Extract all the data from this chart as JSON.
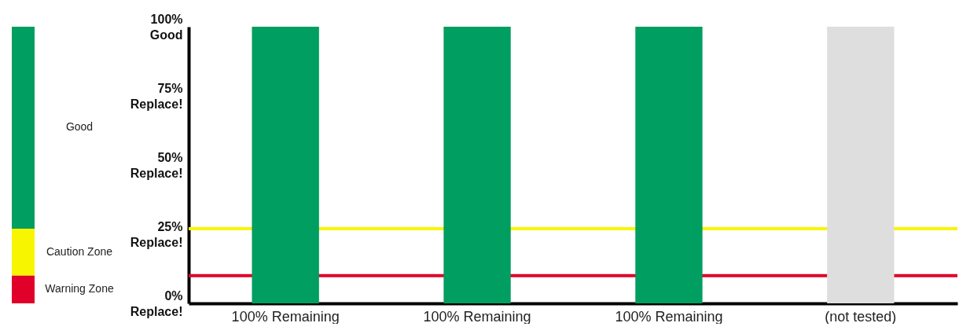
{
  "chart_data": {
    "type": "bar",
    "categories": [
      "100% Remaining",
      "100% Remaining",
      "100% Remaining",
      "(not tested)"
    ],
    "values": [
      100,
      100,
      100,
      100
    ],
    "colors": [
      "#009e60",
      "#009e60",
      "#009e60",
      "#dedede"
    ],
    "ylim": [
      0,
      100
    ],
    "yticks": [
      {
        "value": 0,
        "label": "0%\nReplace!"
      },
      {
        "value": 25,
        "label": "25%\nReplace!"
      },
      {
        "value": 50,
        "label": "50%\nReplace!"
      },
      {
        "value": 75,
        "label": "75%\nReplace!"
      },
      {
        "value": 100,
        "label": "100%\nGood"
      }
    ],
    "ref_lines": [
      {
        "axis": "y",
        "value": 27,
        "color": "#f7f500"
      },
      {
        "axis": "y",
        "value": 10,
        "color": "#e0002a"
      }
    ],
    "annotations": [
      "Good",
      "Caution Zone",
      "Warning Zone"
    ],
    "grid": false
  }
}
